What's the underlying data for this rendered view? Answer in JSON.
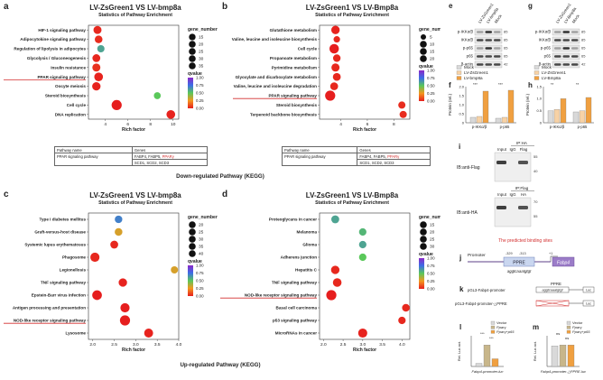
{
  "panels": {
    "a": {
      "label": "a",
      "title": "LV-ZsGreen1 VS LV-bmp8a",
      "subtitle": "Statistics of Pathway Enrichment",
      "xlabel": "Rich factor",
      "ticks": [
        "4",
        "6",
        "8",
        "10"
      ],
      "highlight": "PPAR signaling pathway",
      "size_legend_title": "gene_number",
      "size_legend": [
        "15",
        "20",
        "25",
        "30",
        "35"
      ],
      "color_legend_title": "qvalue",
      "color_legend": [
        "1.00",
        "0.75",
        "0.50",
        "0.25",
        "0.00"
      ],
      "table": {
        "h1": "Pathway name",
        "h2": "Genes",
        "r1": "PPAR signaling pathway",
        "g1": "FABP4, FABP5,",
        "g1b": "PPARγ",
        "g2": "SCD1, SCD2, SCD3"
      }
    },
    "b": {
      "label": "b",
      "title": "LV-ZsGreen1 VS LV-Bmp8a",
      "subtitle": "Statistics of Pathway Enrichment",
      "xlabel": "Rich factor",
      "ticks": [
        "4",
        "6",
        "8"
      ],
      "highlight": "PPAR signaling pathway",
      "size_legend_title": "gene_number",
      "size_legend": [
        "5",
        "10",
        "15",
        "20"
      ],
      "color_legend_title": "qvalue",
      "color_legend": [
        "1.00",
        "0.75",
        "0.50",
        "0.25",
        "0.00"
      ],
      "table": {
        "h1": "Pathway name",
        "h2": "Genes",
        "r1": "PPAR signaling pathway",
        "g1": "FABP4, FABP5,",
        "g1b": "PPARγ",
        "g2": "SCD1, SCD2, SCD3"
      }
    },
    "c": {
      "label": "c",
      "title": "LV-ZsGreen1 VS LV-bmp8a",
      "subtitle": "Statistics of Pathway Enrichment",
      "xlabel": "Rich factor",
      "ticks": [
        "2.0",
        "2.5",
        "3.0",
        "3.5",
        "4.0"
      ],
      "highlight": "NOD-like receptor signaling pathway",
      "size_legend_title": "gene_number",
      "size_legend": [
        "20",
        "25",
        "30",
        "35",
        "40"
      ],
      "color_legend_title": "qvalue",
      "color_legend": [
        "1.00",
        "0.75",
        "0.50",
        "0.25",
        "0.00"
      ]
    },
    "d": {
      "label": "d",
      "title": "LV-ZsGreen1 VS LV-Bmp8a",
      "subtitle": "Statistics of Pathway Enrichment",
      "xlabel": "Rich factor",
      "ticks": [
        "2.0",
        "2.5",
        "3.0",
        "3.5",
        "4.0"
      ],
      "highlight": "NOD-like receptor signaling pathway",
      "size_legend_title": "gene_number",
      "size_legend": [
        "15",
        "20",
        "25",
        "30"
      ],
      "color_legend_title": "qvalue",
      "color_legend": [
        "1.00",
        "0.75",
        "0.50",
        "0.25",
        "0.00"
      ]
    },
    "e": {
      "label": "e",
      "lanes": [
        "LV-ZsGreen1",
        "LV-bmp8a",
        "Mock"
      ],
      "bands": [
        "p-IKKα/β",
        "IKKα/β",
        "p-p65",
        "p65",
        "β-actin"
      ],
      "kda": [
        "85",
        "85",
        "65",
        "65",
        "42"
      ]
    },
    "g": {
      "label": "g",
      "lanes": [
        "LV-ZsGreen1",
        "LV-Bmp8a",
        "Mock"
      ],
      "bands": [
        "p-IKKα/β",
        "IKKα/β",
        "p-p65",
        "p65",
        "β-actin"
      ],
      "kda": [
        "85",
        "85",
        "65",
        "65",
        "42"
      ]
    },
    "f": {
      "label": "f",
      "legend": [
        "Mock",
        "LV-ZsGreen1",
        "LV-bmp8a"
      ],
      "ylabel": "Protein (rel.)",
      "groups": [
        "p-IKKα/β",
        "p-p65"
      ],
      "yticks": [
        "0",
        "0.5",
        "1.0",
        "1.5",
        "2.0"
      ],
      "sig": "***"
    },
    "h": {
      "label": "h",
      "legend": [
        "Mock",
        "LV-ZsGreen1",
        "LV-Bmp8a"
      ],
      "ylabel": "Protein (rel.)",
      "groups": [
        "p-IKKα/β",
        "p-p65"
      ],
      "yticks": [
        "0",
        "0.5",
        "1.0",
        "1.5"
      ],
      "sig": "**"
    },
    "i": {
      "label": "i",
      "ip1": "IP:HA",
      "ip2": "IP:Flag",
      "lanes1": [
        "Input",
        "IgG",
        "Flag"
      ],
      "lanes2": [
        "Input",
        "IgG",
        "HA"
      ],
      "ib1": "IB:anti-Flag",
      "ib2": "IB:anti-HA",
      "kda1": [
        "55",
        "40"
      ],
      "kda2": [
        "70",
        "55"
      ]
    },
    "j": {
      "label": "j",
      "title": "The predicted binding sites",
      "promoter": "Promoter",
      "ppre": "PPRE",
      "gene": "Fabp4",
      "pos1": "-329",
      "pos2": "-313",
      "pos3": "+1",
      "seq": "aggtcaaatgtgt"
    },
    "k": {
      "label": "k",
      "ppre": "PPRE",
      "c1": "pGL3-Fabp4-promoter",
      "c1seq": "aggtcaaatgtgt",
      "c2": "pGL3-Fabp4-promoter-△PPRE",
      "luc": "Luc"
    },
    "l": {
      "label": "l",
      "legend": [
        "Vector",
        "Pparγ",
        "Pparγ+p65"
      ],
      "ylabel": "Rel. Luc act.",
      "xlabel": "Fabp4-promoter-luc",
      "sig1": "***",
      "sig2": "***"
    },
    "m": {
      "label": "m",
      "legend": [
        "Vector",
        "Pparγ",
        "Pparγ+p65"
      ],
      "ylabel": "Rel. Luc act.",
      "xlabel": "Fabp4-promoter-△PPRE-luc",
      "sig1": "ns",
      "sig2": "ns"
    }
  },
  "section_labels": {
    "down": "Down-regulated Pathway (KEGG)",
    "up": "Up-regulated Pathway (KEGG)"
  },
  "chart_data": [
    {
      "id": "a",
      "type": "scatter",
      "title": "LV-ZsGreen1 VS LV-bmp8a",
      "xlabel": "Rich factor",
      "xlim": [
        2.5,
        10.5
      ],
      "categories": [
        "HIF-1 signaling pathway",
        "Adipocytokine signaling pathway",
        "Regulation of lipolysis in adipocytes",
        "Glycolysis / Gluconeogenesis",
        "Insulin resistance",
        "PPAR signaling pathway",
        "Oocyte meiosis",
        "Steroid biosynthesis",
        "Cell cycle",
        "DNA replication"
      ],
      "x": [
        3.3,
        3.4,
        3.6,
        3.2,
        3.2,
        3.4,
        3.2,
        8.6,
        5.0,
        9.8
      ],
      "gene_number": [
        18,
        16,
        14,
        17,
        18,
        22,
        20,
        12,
        32,
        22
      ],
      "qvalue": [
        0.02,
        0.03,
        0.6,
        0.02,
        0.04,
        0.01,
        0.01,
        0.5,
        0.0,
        0.01
      ]
    },
    {
      "id": "b",
      "type": "scatter",
      "title": "LV-ZsGreen1 VS LV-Bmp8a",
      "xlabel": "Rich factor",
      "xlim": [
        2.4,
        9.2
      ],
      "categories": [
        "Glutathione metabolism",
        "Valine, leucine and isoleucine biosynthesis",
        "Cell cycle",
        "Propanoate metabolism",
        "Pyrimidine metabolism",
        "Glyoxylate and dicarboxylate metabolism",
        "Valine, leucine and isoleucine degradation",
        "PPAR signaling pathway",
        "Steroid biosynthesis",
        "Terpenoid backbone biosynthesis"
      ],
      "x": [
        3.6,
        3.7,
        3.5,
        3.7,
        3.6,
        3.7,
        3.5,
        3.2,
        8.6,
        8.7
      ],
      "gene_number": [
        12,
        6,
        16,
        9,
        11,
        10,
        10,
        19,
        8,
        8
      ],
      "qvalue": [
        0.01,
        0.02,
        0.0,
        0.02,
        0.02,
        0.02,
        0.02,
        0.0,
        0.03,
        0.03
      ]
    },
    {
      "id": "c",
      "type": "scatter",
      "title": "LV-ZsGreen1 VS LV-bmp8a",
      "xlabel": "Rich factor",
      "xlim": [
        1.9,
        4.0
      ],
      "categories": [
        "Type I diabetes mellitus",
        "Graft-versus-host disease",
        "Systemic lupus erythematosus",
        "Phagosome",
        "Legionellosis",
        "TNF signaling pathway",
        "Epstein-Barr virus infection",
        "Antigen processing and presentation",
        "NOD-like receptor signaling pathway",
        "Lysosome"
      ],
      "x": [
        2.6,
        2.6,
        2.5,
        2.05,
        3.9,
        2.7,
        2.1,
        2.75,
        2.75,
        3.3
      ],
      "gene_number": [
        18,
        19,
        20,
        30,
        16,
        24,
        34,
        30,
        38,
        28
      ],
      "qvalue": [
        0.7,
        0.3,
        0.02,
        0.02,
        0.3,
        0.01,
        0.0,
        0.0,
        0.0,
        0.01
      ]
    },
    {
      "id": "d",
      "type": "scatter",
      "title": "LV-ZsGreen1 VS LV-Bmp8a",
      "xlabel": "Rich factor",
      "xlim": [
        1.9,
        4.2
      ],
      "categories": [
        "Proteoglycans in cancer",
        "Melanoma",
        "Glioma",
        "Adherens junction",
        "Hepatitis C",
        "TNF signaling pathway",
        "NOD-like receptor signaling pathway",
        "Basal cell carcinoma",
        "p53 signaling pathway",
        "MicroRNAs in cancer"
      ],
      "x": [
        2.3,
        3.0,
        3.0,
        3.0,
        2.3,
        2.35,
        2.2,
        4.1,
        4.0,
        3.0
      ],
      "gene_number": [
        12,
        10,
        10,
        10,
        14,
        15,
        22,
        11,
        10,
        17
      ],
      "qvalue": [
        0.6,
        0.55,
        0.6,
        0.5,
        0.02,
        0.02,
        0.0,
        0.02,
        0.02,
        0.01
      ]
    },
    {
      "id": "f",
      "type": "bar",
      "categories": [
        "p-IKKα/β",
        "p-p65"
      ],
      "ylim": [
        0,
        2.0
      ],
      "series": [
        {
          "name": "Mock",
          "values": [
            0.3,
            0.25
          ]
        },
        {
          "name": "LV-ZsGreen1",
          "values": [
            0.35,
            0.3
          ]
        },
        {
          "name": "LV-bmp8a",
          "values": [
            1.75,
            1.8
          ]
        }
      ]
    },
    {
      "id": "h",
      "type": "bar",
      "categories": [
        "p-IKKα/β",
        "p-p65"
      ],
      "ylim": [
        0,
        1.5
      ],
      "series": [
        {
          "name": "Mock",
          "values": [
            0.5,
            0.45
          ]
        },
        {
          "name": "LV-ZsGreen1",
          "values": [
            0.55,
            0.5
          ]
        },
        {
          "name": "LV-Bmp8a",
          "values": [
            1.0,
            1.05
          ]
        }
      ]
    },
    {
      "id": "l",
      "type": "bar",
      "categories": [
        "Fabp4-promoter-luc"
      ],
      "ylim": [
        0,
        10
      ],
      "series": [
        {
          "name": "Vector",
          "values": [
            1.0
          ]
        },
        {
          "name": "Pparγ",
          "values": [
            7.0
          ]
        },
        {
          "name": "Pparγ+p65",
          "values": [
            2.5
          ]
        }
      ]
    },
    {
      "id": "m",
      "type": "bar",
      "categories": [
        "Fabp4-promoter-△PPRE-luc"
      ],
      "ylim": [
        0,
        1.5
      ],
      "series": [
        {
          "name": "Vector",
          "values": [
            1.0
          ]
        },
        {
          "name": "Pparγ",
          "values": [
            1.05
          ]
        },
        {
          "name": "Pparγ+p65",
          "values": [
            1.05
          ]
        }
      ]
    }
  ]
}
